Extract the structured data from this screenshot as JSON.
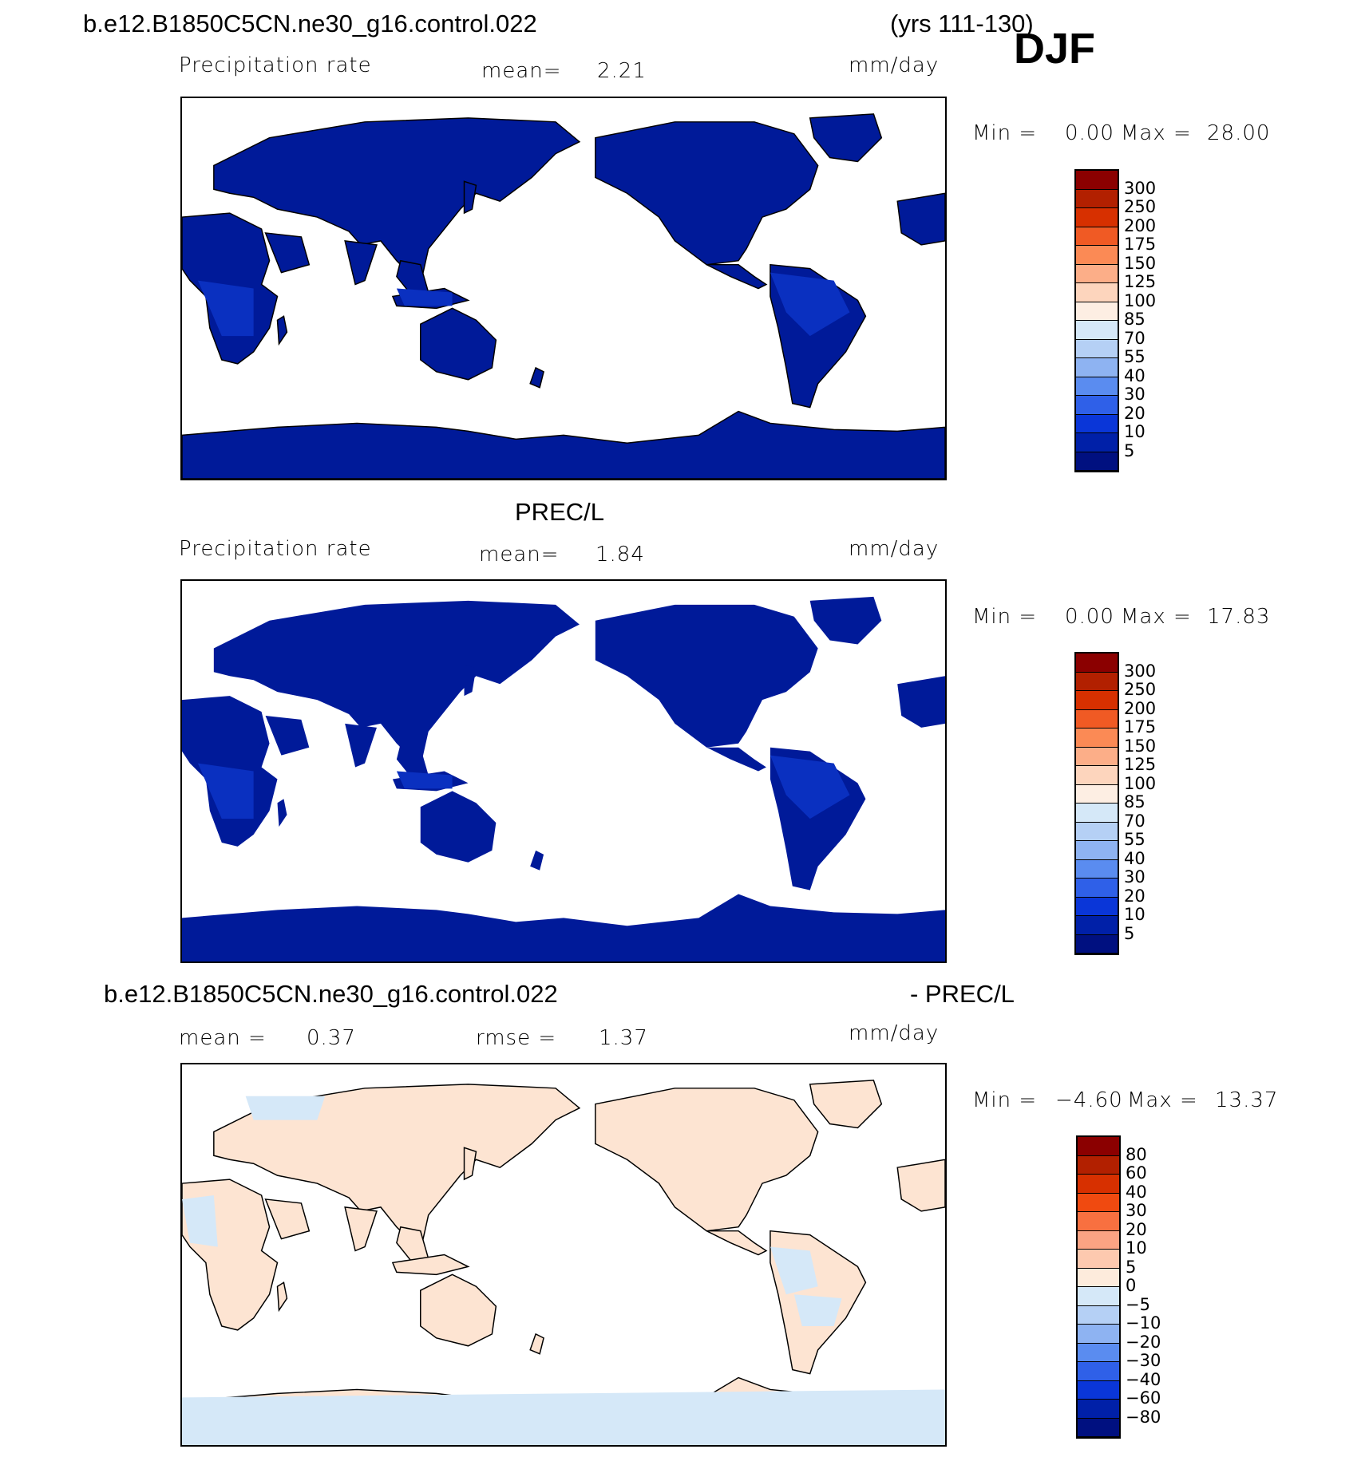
{
  "header": {
    "case_name": "b.e12.B1850C5CN.ne30_g16.control.022",
    "years": "(yrs 111-130)",
    "season": "DJF"
  },
  "panels": [
    {
      "id": "model",
      "subtitle": "",
      "field_label": "Precipitation rate",
      "stat1_label": "mean=",
      "stat1_value": "2.21",
      "stat2_label": "",
      "stat2_value": "",
      "units": "mm/day",
      "min_label": "Min =",
      "min_value": "0.00",
      "max_label": "Max =",
      "max_value": "28.00",
      "colorbar_levels": [
        "300",
        "250",
        "200",
        "175",
        "150",
        "125",
        "100",
        "85",
        "70",
        "55",
        "40",
        "30",
        "20",
        "10",
        "5"
      ],
      "colorbar_colors": [
        "#8b0000",
        "#b22000",
        "#d73000",
        "#f05a24",
        "#fb8a55",
        "#fcae88",
        "#fdd5bd",
        "#fdeee3",
        "#d5e8f8",
        "#b5d0f5",
        "#8eb3f2",
        "#5a8cf0",
        "#2f60e8",
        "#0a36d8",
        "#0020a8",
        "#001080"
      ]
    },
    {
      "id": "obs",
      "subtitle": "PREC/L",
      "field_label": "Precipitation rate",
      "stat1_label": "mean=",
      "stat1_value": "1.84",
      "stat2_label": "",
      "stat2_value": "",
      "units": "mm/day",
      "min_label": "Min =",
      "min_value": "0.00",
      "max_label": "Max =",
      "max_value": "17.83",
      "colorbar_levels": [
        "300",
        "250",
        "200",
        "175",
        "150",
        "125",
        "100",
        "85",
        "70",
        "55",
        "40",
        "30",
        "20",
        "10",
        "5"
      ],
      "colorbar_colors": [
        "#8b0000",
        "#b22000",
        "#d73000",
        "#f05a24",
        "#fb8a55",
        "#fcae88",
        "#fdd5bd",
        "#fdeee3",
        "#d5e8f8",
        "#b5d0f5",
        "#8eb3f2",
        "#5a8cf0",
        "#2f60e8",
        "#0a36d8",
        "#0020a8",
        "#001080"
      ]
    },
    {
      "id": "diff",
      "subtitle_left": "b.e12.B1850C5CN.ne30_g16.control.022",
      "subtitle_right": "- PREC/L",
      "field_label": "",
      "stat1_label": "mean =",
      "stat1_value": "0.37",
      "stat2_label": "rmse =",
      "stat2_value": "1.37",
      "units": "mm/day",
      "min_label": "Min =",
      "min_value": "−4.60",
      "max_label": "Max =",
      "max_value": "13.37",
      "colorbar_levels": [
        "80",
        "60",
        "40",
        "30",
        "20",
        "10",
        "5",
        "0",
        "−5",
        "−10",
        "−20",
        "−30",
        "−40",
        "−60",
        "−80"
      ],
      "colorbar_colors": [
        "#8b0000",
        "#b22000",
        "#d73000",
        "#f04a10",
        "#f87040",
        "#fba383",
        "#fdc9af",
        "#fdebdc",
        "#d5e8f8",
        "#b5d0f5",
        "#8eb3f2",
        "#5a8cf0",
        "#2f60e8",
        "#0a36d8",
        "#0020a8",
        "#001080"
      ]
    }
  ],
  "map_colors": {
    "land_model": "#001a99",
    "land_model_wet": "#0a30c0",
    "land_diff_pos": "#fde4d2",
    "land_diff_neg": "#d5e8f8",
    "ocean": "#ffffff"
  }
}
